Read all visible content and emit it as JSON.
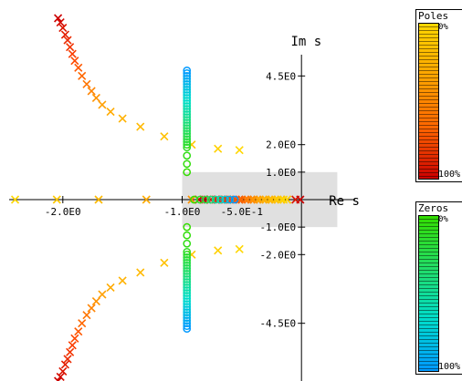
{
  "chart_data": {
    "type": "scatter",
    "title": "",
    "xlabel": "Re s",
    "ylabel": "Im s",
    "xlim": [
      -2.45,
      0.45
    ],
    "ylim": [
      -6.6,
      6.6
    ],
    "x_tick_labels": [
      {
        "value": -2.0,
        "label": "-2.0E0"
      },
      {
        "value": -1.0,
        "label": "-1.0E0"
      },
      {
        "value": -0.5,
        "label": "-5.0E-1"
      }
    ],
    "y_tick_labels": [
      {
        "value": 4.5,
        "label": "4.5E0"
      },
      {
        "value": 2.0,
        "label": "2.0E0"
      },
      {
        "value": 1.0,
        "label": "1.0E0"
      },
      {
        "value": -1.0,
        "label": "-1.0E0"
      },
      {
        "value": -2.0,
        "label": "-2.0E0"
      },
      {
        "value": -4.5,
        "label": "-4.5E0"
      }
    ],
    "shaded_region": {
      "x": [
        -1.0,
        0.3
      ],
      "y": [
        -1.0,
        1.0
      ],
      "color": "#e0e0e0"
    },
    "series": [
      {
        "name": "Poles",
        "marker": "x",
        "colormap": [
          "#ffd700",
          "#ffa500",
          "#ff4500",
          "#cc0000"
        ],
        "branches": [
          {
            "points": [
              [
                -2.4,
                0
              ],
              [
                -2.05,
                0
              ],
              [
                -1.7,
                0
              ],
              [
                -1.3,
                0
              ],
              [
                -0.92,
                0
              ],
              [
                -0.62,
                0
              ],
              [
                -0.4,
                0
              ],
              [
                -0.25,
                0
              ],
              [
                -0.12,
                0
              ],
              [
                -0.05,
                0
              ],
              [
                -0.01,
                0
              ]
            ]
          },
          {
            "points": [
              [
                -0.12,
                0
              ],
              [
                -0.17,
                0
              ],
              [
                -0.22,
                0
              ],
              [
                -0.27,
                0
              ],
              [
                -0.32,
                0
              ],
              [
                -0.37,
                0
              ],
              [
                -0.42,
                0
              ],
              [
                -0.47,
                0
              ],
              [
                -0.52,
                0
              ],
              [
                -0.57,
                0
              ],
              [
                -0.62,
                0
              ],
              [
                -0.66,
                0
              ],
              [
                -0.72,
                0
              ],
              [
                -0.79,
                0
              ],
              [
                -0.86,
                0
              ]
            ]
          },
          {
            "points": [
              [
                -0.15,
                0
              ],
              [
                -0.2,
                0
              ],
              [
                -0.25,
                0
              ],
              [
                -0.3,
                0
              ],
              [
                -0.35,
                0
              ],
              [
                -0.4,
                0
              ],
              [
                -0.45,
                0
              ],
              [
                -0.5,
                0
              ],
              [
                -0.55,
                0
              ],
              [
                -0.6,
                0
              ],
              [
                -0.64,
                0
              ],
              [
                -0.7,
                0
              ],
              [
                -0.76,
                0
              ],
              [
                -0.82,
                0
              ]
            ]
          },
          {
            "points": [
              [
                -0.52,
                1.8
              ],
              [
                -0.7,
                1.85
              ],
              [
                -0.92,
                2.0
              ],
              [
                -1.15,
                2.3
              ],
              [
                -1.35,
                2.65
              ],
              [
                -1.5,
                2.95
              ],
              [
                -1.6,
                3.2
              ],
              [
                -1.67,
                3.45
              ],
              [
                -1.72,
                3.7
              ],
              [
                -1.76,
                3.95
              ],
              [
                -1.8,
                4.2
              ],
              [
                -1.84,
                4.5
              ],
              [
                -1.87,
                4.8
              ],
              [
                -1.9,
                5.05
              ],
              [
                -1.92,
                5.3
              ],
              [
                -1.94,
                5.55
              ],
              [
                -1.96,
                5.8
              ],
              [
                -1.98,
                6.0
              ],
              [
                -2.0,
                6.25
              ],
              [
                -2.02,
                6.45
              ],
              [
                -2.04,
                6.6
              ]
            ]
          },
          {
            "points": [
              [
                -0.52,
                -1.8
              ],
              [
                -0.7,
                -1.85
              ],
              [
                -0.92,
                -2.0
              ],
              [
                -1.15,
                -2.3
              ],
              [
                -1.35,
                -2.65
              ],
              [
                -1.5,
                -2.95
              ],
              [
                -1.6,
                -3.2
              ],
              [
                -1.67,
                -3.45
              ],
              [
                -1.72,
                -3.7
              ],
              [
                -1.76,
                -3.95
              ],
              [
                -1.8,
                -4.2
              ],
              [
                -1.84,
                -4.5
              ],
              [
                -1.87,
                -4.8
              ],
              [
                -1.9,
                -5.05
              ],
              [
                -1.92,
                -5.3
              ],
              [
                -1.94,
                -5.55
              ],
              [
                -1.96,
                -5.8
              ],
              [
                -1.98,
                -6.0
              ],
              [
                -2.0,
                -6.25
              ],
              [
                -2.02,
                -6.45
              ],
              [
                -2.04,
                -6.6
              ]
            ]
          }
        ]
      },
      {
        "name": "Zeros",
        "marker": "o",
        "colormap": [
          "#33dd00",
          "#22dd66",
          "#00ddcc",
          "#0099ff"
        ],
        "branches": [
          {
            "points": [
              [
                -0.96,
                1.0
              ],
              [
                -0.96,
                1.3
              ],
              [
                -0.96,
                1.6
              ],
              [
                -0.96,
                1.9
              ],
              [
                -0.96,
                2.0
              ],
              [
                -0.96,
                2.1
              ],
              [
                -0.96,
                2.2
              ],
              [
                -0.96,
                2.3
              ],
              [
                -0.96,
                2.4
              ],
              [
                -0.96,
                2.5
              ],
              [
                -0.96,
                2.6
              ],
              [
                -0.96,
                2.7
              ],
              [
                -0.96,
                2.8
              ],
              [
                -0.96,
                2.9
              ],
              [
                -0.96,
                3.0
              ],
              [
                -0.96,
                3.1
              ],
              [
                -0.96,
                3.2
              ],
              [
                -0.96,
                3.3
              ],
              [
                -0.96,
                3.4
              ],
              [
                -0.96,
                3.5
              ],
              [
                -0.96,
                3.6
              ],
              [
                -0.96,
                3.7
              ],
              [
                -0.96,
                3.8
              ],
              [
                -0.96,
                3.9
              ],
              [
                -0.96,
                4.0
              ],
              [
                -0.96,
                4.1
              ],
              [
                -0.96,
                4.2
              ],
              [
                -0.96,
                4.3
              ],
              [
                -0.96,
                4.4
              ],
              [
                -0.96,
                4.5
              ],
              [
                -0.96,
                4.6
              ],
              [
                -0.96,
                4.7
              ]
            ]
          },
          {
            "points": [
              [
                -0.96,
                -1.0
              ],
              [
                -0.96,
                -1.3
              ],
              [
                -0.96,
                -1.6
              ],
              [
                -0.96,
                -1.9
              ],
              [
                -0.96,
                -2.0
              ],
              [
                -0.96,
                -2.1
              ],
              [
                -0.96,
                -2.2
              ],
              [
                -0.96,
                -2.3
              ],
              [
                -0.96,
                -2.4
              ],
              [
                -0.96,
                -2.5
              ],
              [
                -0.96,
                -2.6
              ],
              [
                -0.96,
                -2.7
              ],
              [
                -0.96,
                -2.8
              ],
              [
                -0.96,
                -2.9
              ],
              [
                -0.96,
                -3.0
              ],
              [
                -0.96,
                -3.1
              ],
              [
                -0.96,
                -3.2
              ],
              [
                -0.96,
                -3.3
              ],
              [
                -0.96,
                -3.4
              ],
              [
                -0.96,
                -3.5
              ],
              [
                -0.96,
                -3.6
              ],
              [
                -0.96,
                -3.7
              ],
              [
                -0.96,
                -3.8
              ],
              [
                -0.96,
                -3.9
              ],
              [
                -0.96,
                -4.0
              ],
              [
                -0.96,
                -4.1
              ],
              [
                -0.96,
                -4.2
              ],
              [
                -0.96,
                -4.3
              ],
              [
                -0.96,
                -4.4
              ],
              [
                -0.96,
                -4.5
              ],
              [
                -0.96,
                -4.6
              ],
              [
                -0.96,
                -4.7
              ]
            ]
          },
          {
            "points": [
              [
                -0.9,
                0
              ],
              [
                -0.85,
                0
              ],
              [
                -0.8,
                0
              ],
              [
                -0.76,
                0
              ],
              [
                -0.72,
                0
              ],
              [
                -0.68,
                0
              ],
              [
                -0.64,
                0
              ],
              [
                -0.6,
                0
              ],
              [
                -0.56,
                0
              ]
            ]
          }
        ]
      }
    ]
  },
  "colorbars": [
    {
      "title": "Poles",
      "top_label": "0%",
      "bottom_label": "100%",
      "stops": [
        "#ffd700",
        "#ffa500",
        "#ff6600",
        "#cc0000"
      ]
    },
    {
      "title": "Zeros",
      "top_label": "0%",
      "bottom_label": "100%",
      "stops": [
        "#33dd00",
        "#22dd66",
        "#00ddcc",
        "#0099ff"
      ]
    }
  ]
}
